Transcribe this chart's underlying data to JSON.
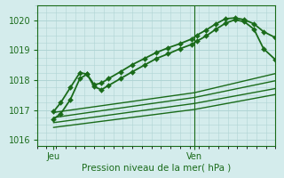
{
  "bg_color": "#d4ecec",
  "grid_color": "#afd4d4",
  "line_color": "#1a6b1a",
  "xlabel": "Pression niveau de la mer( hPa )",
  "ylim": [
    1015.8,
    1020.5
  ],
  "yticks": [
    1016,
    1017,
    1018,
    1019,
    1020
  ],
  "day_labels": [
    "Jeu",
    "Ven"
  ],
  "day_positions": [
    0.07,
    0.66
  ],
  "vline_pos": 0.66,
  "series_marked": [
    {
      "x": [
        0.07,
        0.1,
        0.14,
        0.18,
        0.21,
        0.24,
        0.27,
        0.3,
        0.35,
        0.4,
        0.45,
        0.5,
        0.55,
        0.6,
        0.65,
        0.67,
        0.71,
        0.75,
        0.79,
        0.83,
        0.87,
        0.91,
        0.95,
        1.0
      ],
      "y": [
        1016.95,
        1017.25,
        1017.75,
        1018.25,
        1018.2,
        1017.85,
        1017.9,
        1018.05,
        1018.28,
        1018.52,
        1018.72,
        1018.92,
        1019.08,
        1019.22,
        1019.38,
        1019.5,
        1019.68,
        1019.88,
        1020.05,
        1020.08,
        1020.02,
        1019.88,
        1019.62,
        1019.42
      ],
      "color": "#1a6b1a",
      "lw": 1.3,
      "ms": 3.0
    },
    {
      "x": [
        0.07,
        0.1,
        0.14,
        0.18,
        0.21,
        0.24,
        0.27,
        0.3,
        0.35,
        0.4,
        0.45,
        0.5,
        0.55,
        0.6,
        0.65,
        0.67,
        0.71,
        0.75,
        0.79,
        0.83,
        0.87,
        0.91,
        0.95,
        1.0
      ],
      "y": [
        1016.7,
        1016.88,
        1017.35,
        1018.05,
        1018.2,
        1017.78,
        1017.68,
        1017.82,
        1018.05,
        1018.28,
        1018.5,
        1018.72,
        1018.88,
        1019.05,
        1019.2,
        1019.3,
        1019.48,
        1019.7,
        1019.9,
        1020.02,
        1019.95,
        1019.7,
        1019.05,
        1018.68
      ],
      "color": "#1a6b1a",
      "lw": 1.3,
      "ms": 3.0
    }
  ],
  "series_fan": [
    {
      "x": [
        0.07,
        0.66,
        1.0
      ],
      "y": [
        1016.92,
        1017.58,
        1018.22
      ],
      "color": "#1a6b1a",
      "lw": 1.0
    },
    {
      "x": [
        0.07,
        0.66,
        1.0
      ],
      "y": [
        1016.75,
        1017.42,
        1017.98
      ],
      "color": "#1a6b1a",
      "lw": 1.0
    },
    {
      "x": [
        0.07,
        0.66,
        1.0
      ],
      "y": [
        1016.58,
        1017.22,
        1017.72
      ],
      "color": "#1a6b1a",
      "lw": 1.0
    },
    {
      "x": [
        0.07,
        0.66,
        1.0
      ],
      "y": [
        1016.42,
        1017.02,
        1017.52
      ],
      "color": "#1a6b1a",
      "lw": 1.0
    }
  ]
}
